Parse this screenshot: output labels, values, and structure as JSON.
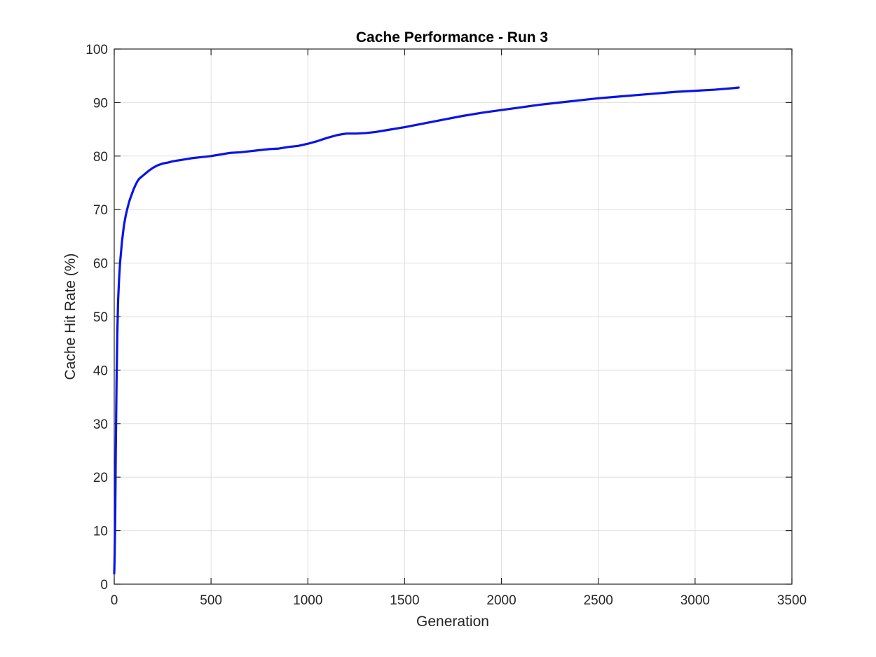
{
  "chart_data": {
    "type": "line",
    "title": "Cache Performance - Run 3",
    "xlabel": "Generation",
    "ylabel": "Cache Hit Rate (%)",
    "xlim": [
      0,
      3500
    ],
    "ylim": [
      0,
      100
    ],
    "xticks": [
      0,
      500,
      1000,
      1500,
      2000,
      2500,
      3000,
      3500
    ],
    "yticks": [
      0,
      10,
      20,
      30,
      40,
      50,
      60,
      70,
      80,
      90,
      100
    ],
    "xtick_labels": [
      "0",
      "500",
      "1000",
      "1500",
      "2000",
      "2500",
      "3000",
      "3500"
    ],
    "ytick_labels": [
      "0",
      "10",
      "20",
      "30",
      "40",
      "50",
      "60",
      "70",
      "80",
      "90",
      "100"
    ],
    "grid": true,
    "colors": {
      "line": "#0a14e6",
      "grid": "#dfdfdf",
      "axes": "#262626"
    },
    "series": [
      {
        "x": [
          0,
          2,
          5,
          8,
          12,
          16,
          20,
          25,
          30,
          40,
          50,
          60,
          70,
          80,
          90,
          100,
          110,
          120,
          130,
          140,
          150,
          160,
          170,
          180,
          200,
          220,
          250,
          280,
          300,
          350,
          400,
          450,
          500,
          550,
          600,
          650,
          700,
          750,
          800,
          850,
          900,
          950,
          1000,
          1050,
          1100,
          1150,
          1180,
          1200,
          1250,
          1300,
          1350,
          1400,
          1500,
          1600,
          1700,
          1800,
          1900,
          2000,
          2100,
          2200,
          2300,
          2400,
          2500,
          2600,
          2700,
          2800,
          2900,
          3000,
          3100,
          3200,
          3225
        ],
        "y": [
          2,
          5,
          12,
          25,
          38,
          47,
          53,
          57,
          60,
          64,
          67,
          69,
          70.5,
          71.8,
          72.8,
          73.8,
          74.6,
          75.3,
          75.8,
          76.1,
          76.4,
          76.7,
          77.0,
          77.3,
          77.8,
          78.2,
          78.6,
          78.8,
          79.0,
          79.3,
          79.6,
          79.8,
          80.0,
          80.3,
          80.6,
          80.7,
          80.9,
          81.1,
          81.3,
          81.4,
          81.7,
          81.9,
          82.3,
          82.8,
          83.4,
          83.9,
          84.1,
          84.2,
          84.2,
          84.3,
          84.5,
          84.8,
          85.4,
          86.1,
          86.8,
          87.5,
          88.1,
          88.6,
          89.1,
          89.6,
          90.0,
          90.4,
          90.8,
          91.1,
          91.4,
          91.7,
          92.0,
          92.2,
          92.4,
          92.7,
          92.8
        ]
      }
    ]
  }
}
